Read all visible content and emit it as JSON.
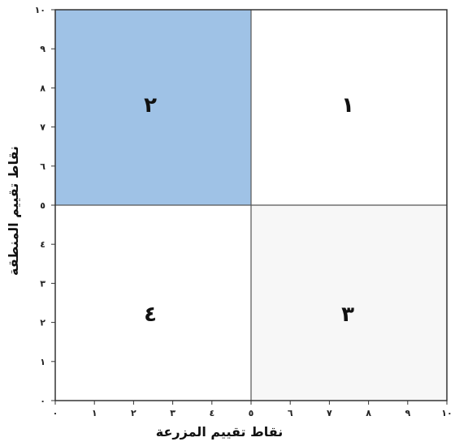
{
  "diagram": {
    "x_axis": {
      "label": "نقاط تقييم المزرعة",
      "ticks": [
        "٠",
        "١",
        "٢",
        "٣",
        "٤",
        "٥",
        "٦",
        "٧",
        "٨",
        "٩",
        "١٠"
      ]
    },
    "y_axis": {
      "label": "نقاط تقييم المنطقة",
      "ticks": [
        "٠",
        "١",
        "٢",
        "٣",
        "٤",
        "٥",
        "٦",
        "٧",
        "٨",
        "٩",
        "١٠"
      ]
    },
    "quadrants": [
      {
        "id": "q1",
        "label": "١",
        "fill": "#ffffff"
      },
      {
        "id": "q2",
        "label": "٢",
        "fill": "#9fc2e6"
      },
      {
        "id": "q3",
        "label": "٣",
        "fill": "#f7f7f7"
      },
      {
        "id": "q4",
        "label": "٤",
        "fill": "#ffffff"
      }
    ],
    "colors": {
      "border": "#333333",
      "highlight": "#9fc2e6"
    }
  }
}
